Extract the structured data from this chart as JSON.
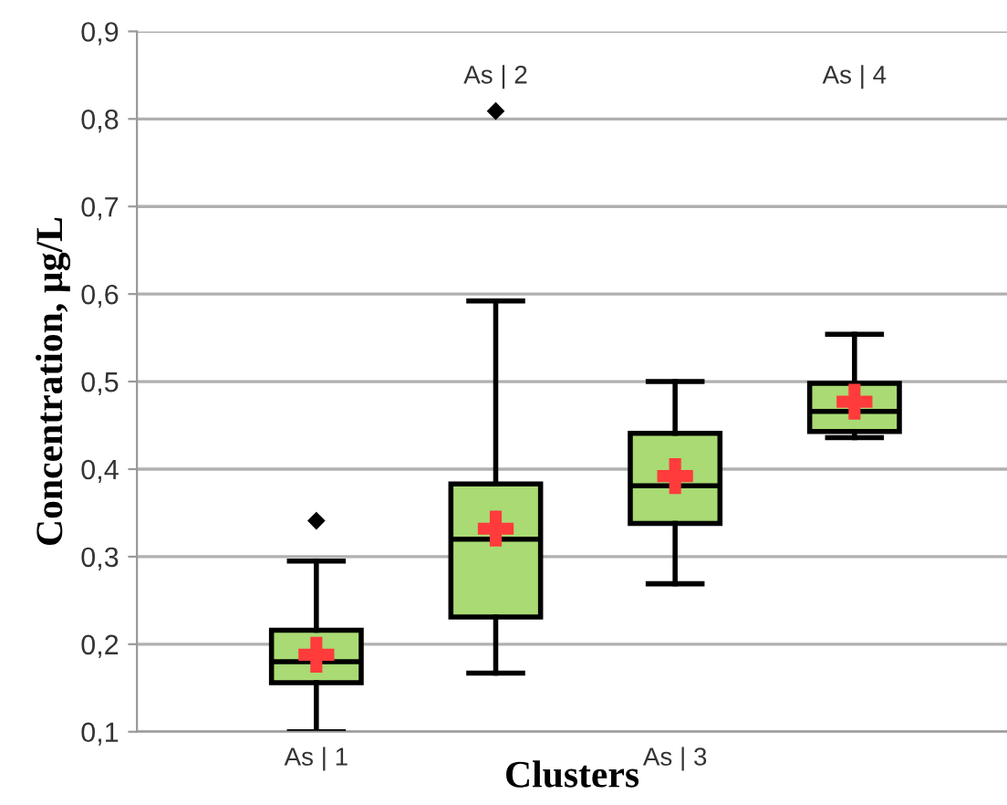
{
  "chart_data": {
    "type": "box",
    "xlabel": "Clusters",
    "ylabel": "Concentration, µg/L",
    "categories": [
      "As | 1",
      "As | 2",
      "As | 3",
      "As | 4"
    ],
    "series": [
      {
        "color": "#a9da74",
        "boxes": [
          {
            "low": 0.1,
            "q1": 0.156,
            "median": 0.18,
            "q3": 0.216,
            "high": 0.295,
            "outliers": [
              0.341
            ]
          },
          {
            "low": 0.167,
            "q1": 0.231,
            "median": 0.32,
            "q3": 0.383,
            "high": 0.592,
            "outliers": [
              0.809
            ]
          },
          {
            "low": 0.269,
            "q1": 0.338,
            "median": 0.381,
            "q3": 0.441,
            "high": 0.5
          },
          {
            "low": 0.436,
            "q1": 0.443,
            "median": 0.466,
            "q3": 0.498,
            "high": 0.554
          }
        ]
      },
      {
        "type": "scatter",
        "marker": "cross",
        "color": "#ff3b3b",
        "x": [
          "As | 1",
          "As | 2",
          "As | 3",
          "As | 4"
        ],
        "values": [
          0.188,
          0.332,
          0.392,
          0.477
        ]
      }
    ],
    "ylim": [
      0.1,
      0.9
    ],
    "yticks": [
      {
        "value": 0.1,
        "label": "0,1"
      },
      {
        "value": 0.2,
        "label": "0,2"
      },
      {
        "value": 0.3,
        "label": "0,3"
      },
      {
        "value": 0.4,
        "label": "0,4"
      },
      {
        "value": 0.5,
        "label": "0,5"
      },
      {
        "value": 0.6,
        "label": "0,6"
      },
      {
        "value": 0.7,
        "label": "0,7"
      },
      {
        "value": 0.8,
        "label": "0,8"
      },
      {
        "value": 0.9,
        "label": "0,9"
      }
    ],
    "grid": "y"
  }
}
